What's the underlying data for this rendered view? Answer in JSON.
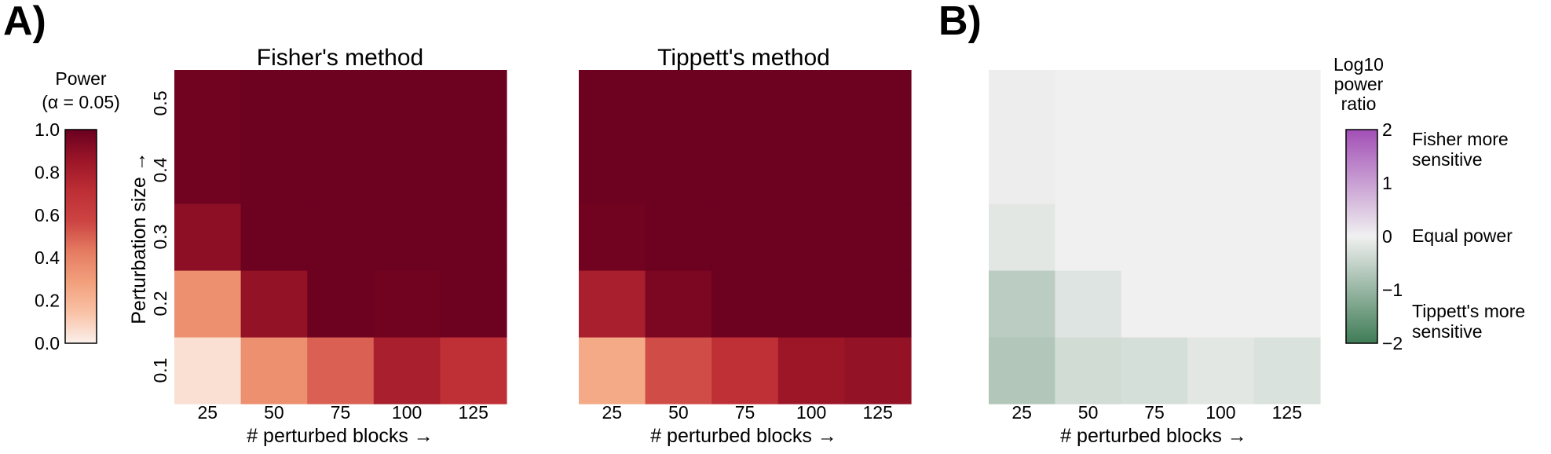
{
  "panel_labels": [
    "A)",
    "B)"
  ],
  "colors": {
    "power_colormap": [
      "#fbf0eb",
      "#f9c2a6",
      "#f2a07c",
      "#e57c62",
      "#cc4442",
      "#bd2e35",
      "#9b1527",
      "#6a0020"
    ],
    "ratio_colormap_negative": "#3f7c56",
    "ratio_colormap_center": "#f0f0f0",
    "ratio_colormap_positive": "#a24fb6"
  },
  "power_colorbar": {
    "title_line1": "Power",
    "title_line2": "(α = 0.05)",
    "range": [
      0.0,
      1.0
    ],
    "tick_labels": [
      "1.0",
      "0.8",
      "0.6",
      "0.4",
      "0.2",
      "0.0"
    ]
  },
  "ratio_colorbar": {
    "title_lines": [
      "Log10",
      "power",
      "ratio"
    ],
    "range": [
      -2,
      2
    ],
    "tick_labels": [
      "2",
      "1",
      "0",
      "−1",
      "−2"
    ],
    "annotations": {
      "fisher_line1": "Fisher more",
      "fisher_line2": "sensitive",
      "equal": "Equal power",
      "tippett_line1": "Tippett's more",
      "tippett_line2": "sensitive"
    }
  },
  "chart_data": [
    {
      "type": "heatmap",
      "title": "Fisher's method",
      "xlabel": "# perturbed blocks  →",
      "ylabel": "Perturbation size  →",
      "x_categories": [
        "25",
        "50",
        "75",
        "100",
        "125"
      ],
      "y_categories": [
        "0.1",
        "0.2",
        "0.3",
        "0.4",
        "0.5"
      ],
      "z": [
        [
          0.05,
          0.35,
          0.5,
          0.8,
          0.7
        ],
        [
          0.35,
          0.88,
          0.99,
          0.98,
          0.99
        ],
        [
          0.9,
          0.99,
          0.99,
          0.99,
          0.99
        ],
        [
          0.98,
          0.99,
          0.99,
          0.99,
          0.99
        ],
        [
          0.98,
          0.99,
          0.99,
          0.99,
          0.99
        ]
      ],
      "zlim": [
        0,
        1
      ]
    },
    {
      "type": "heatmap",
      "title": "Tippett's method",
      "xlabel": "# perturbed blocks  →",
      "ylabel": "",
      "x_categories": [
        "25",
        "50",
        "75",
        "100",
        "125"
      ],
      "y_categories": [
        "0.1",
        "0.2",
        "0.3",
        "0.4",
        "0.5"
      ],
      "z": [
        [
          0.25,
          0.55,
          0.7,
          0.85,
          0.88
        ],
        [
          0.8,
          0.95,
          0.99,
          0.99,
          0.99
        ],
        [
          0.98,
          0.99,
          0.99,
          0.99,
          0.99
        ],
        [
          0.99,
          0.99,
          0.99,
          0.99,
          0.99
        ],
        [
          0.99,
          0.99,
          0.99,
          0.99,
          0.99
        ]
      ],
      "zlim": [
        0,
        1
      ]
    },
    {
      "type": "heatmap",
      "title": "",
      "xlabel": "# perturbed blocks  →",
      "ylabel": "",
      "x_categories": [
        "25",
        "50",
        "75",
        "100",
        "125"
      ],
      "y_categories": [
        "0.1",
        "0.2",
        "0.3",
        "0.4",
        "0.5"
      ],
      "z": [
        [
          -0.7,
          -0.35,
          -0.3,
          -0.15,
          -0.25
        ],
        [
          -0.6,
          -0.2,
          0,
          0,
          0
        ],
        [
          -0.15,
          0,
          0,
          0,
          0
        ],
        [
          -0.05,
          0,
          0,
          0,
          0
        ],
        [
          -0.05,
          0,
          0,
          0,
          0
        ]
      ],
      "zlim": [
        -2,
        2
      ]
    }
  ]
}
